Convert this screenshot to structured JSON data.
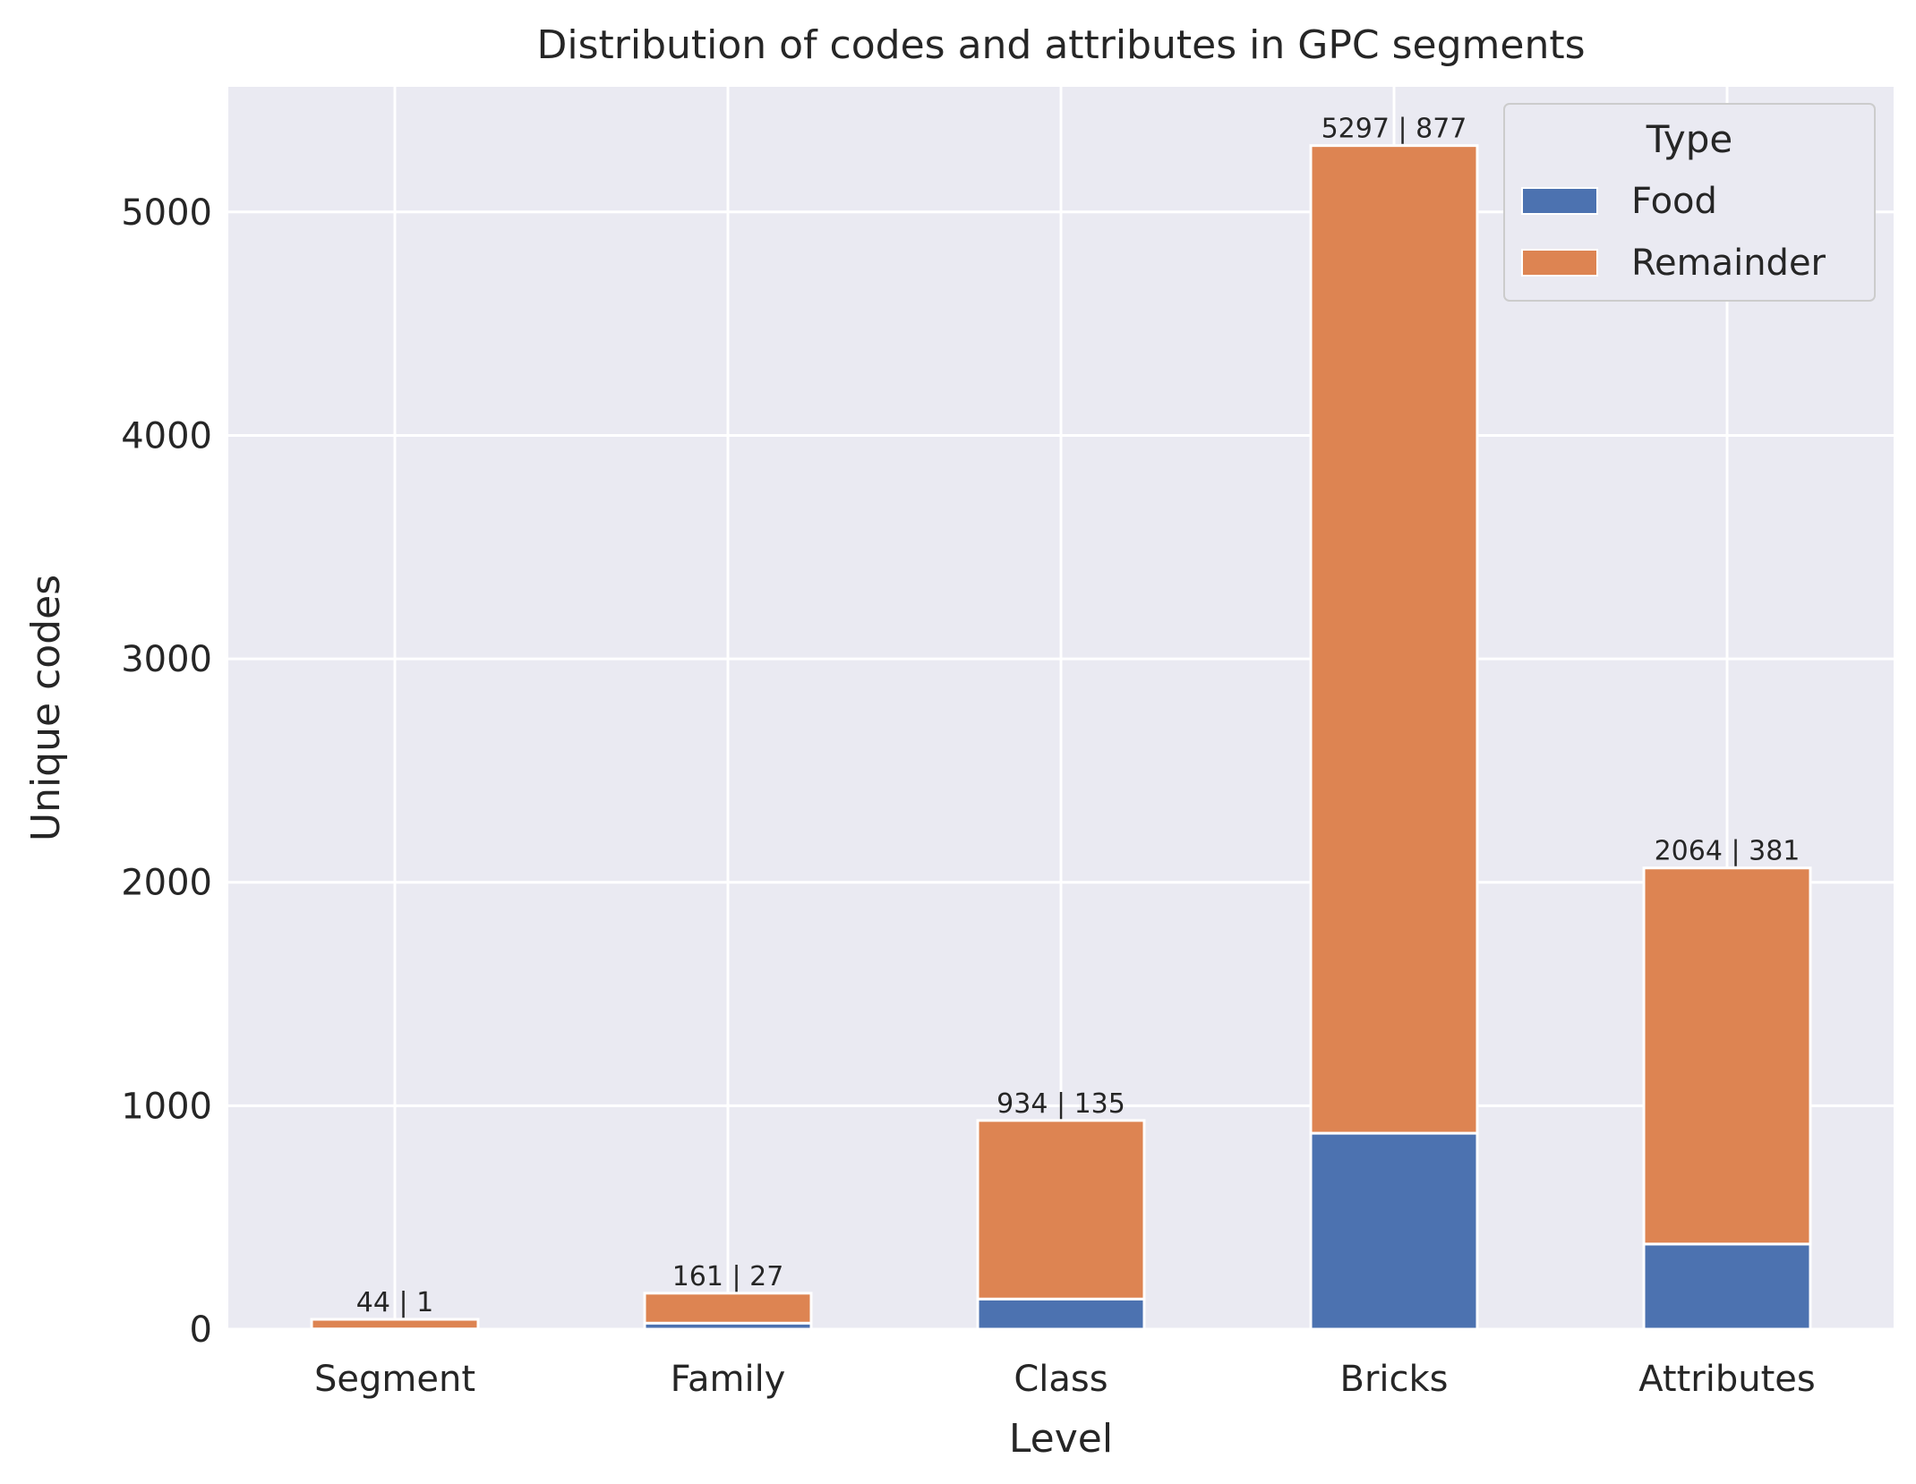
{
  "chart_data": {
    "type": "bar",
    "stacked": true,
    "title": "Distribution of codes and attributes in GPC segments",
    "xlabel": "Level",
    "ylabel": "Unique codes",
    "categories": [
      "Segment",
      "Family",
      "Class",
      "Bricks",
      "Attributes"
    ],
    "series": [
      {
        "name": "Food",
        "color": "#4c72b0",
        "values": [
          1,
          27,
          135,
          877,
          381
        ]
      },
      {
        "name": "Remainder",
        "color": "#dd8452",
        "values": [
          43,
          134,
          799,
          4420,
          1683
        ]
      }
    ],
    "totals": [
      44,
      161,
      934,
      5297,
      2064
    ],
    "bar_labels": [
      "44 | 1",
      "161 | 27",
      "934 | 135",
      "5297 | 877",
      "2064 | 381"
    ],
    "ylim": [
      0,
      5560
    ],
    "yticks": [
      0,
      1000,
      2000,
      3000,
      4000,
      5000
    ],
    "ytick_labels": [
      "0",
      "1000",
      "2000",
      "3000",
      "4000",
      "5000"
    ],
    "grid": true,
    "plot_background": "#eaeaf2",
    "grid_color": "#ffffff",
    "legend": {
      "title": "Type",
      "position": "top-right",
      "entries": [
        "Food",
        "Remainder"
      ]
    }
  }
}
